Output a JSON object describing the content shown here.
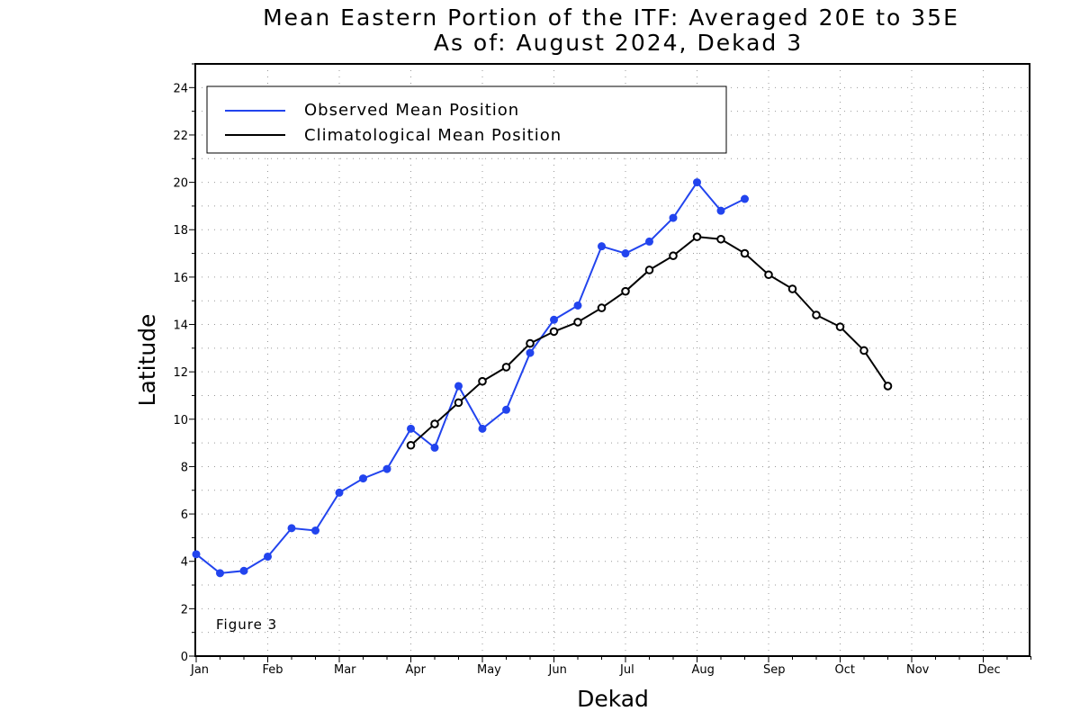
{
  "chart_data": {
    "type": "line",
    "title": "Mean Eastern Portion of the ITF: Averaged 20E to 35E",
    "subtitle": "As of: August 2024, Dekad 3",
    "xlabel": "Dekad",
    "ylabel": "Latitude",
    "ylim": [
      0,
      25
    ],
    "yticks": [
      0,
      2,
      4,
      6,
      8,
      10,
      12,
      14,
      16,
      18,
      20,
      22,
      24
    ],
    "xlim": [
      1,
      36
    ],
    "month_labels": [
      "Jan",
      "Feb",
      "Mar",
      "Apr",
      "May",
      "Jun",
      "Jul",
      "Aug",
      "Sep",
      "Oct",
      "Nov",
      "Dec"
    ],
    "grid": true,
    "legend_position": "top-left",
    "annotation": "Figure 3",
    "series": [
      {
        "name": "Observed Mean Position",
        "color": "#2244ee",
        "marker": "filled-circle",
        "x": [
          1,
          2,
          3,
          4,
          5,
          6,
          7,
          8,
          9,
          10,
          11,
          12,
          13,
          14,
          15,
          16,
          17,
          18,
          19,
          20,
          21,
          22,
          23,
          24
        ],
        "values": [
          4.3,
          3.5,
          3.6,
          4.2,
          5.4,
          5.3,
          6.9,
          7.5,
          7.9,
          9.6,
          8.8,
          11.4,
          9.6,
          10.4,
          12.8,
          14.2,
          14.8,
          17.3,
          17.0,
          17.5,
          18.5,
          20.0,
          18.8,
          19.3
        ]
      },
      {
        "name": "Climatological Mean Position",
        "color": "#000000",
        "marker": "open-circle",
        "x": [
          10,
          11,
          12,
          13,
          14,
          15,
          16,
          17,
          18,
          19,
          20,
          21,
          22,
          23,
          24,
          25,
          26,
          27,
          28,
          29,
          30
        ],
        "values": [
          8.9,
          9.8,
          10.7,
          11.6,
          12.2,
          13.2,
          13.7,
          14.1,
          14.7,
          15.4,
          16.3,
          16.9,
          17.7,
          17.6,
          17.0,
          16.1,
          15.5,
          14.4,
          13.9,
          12.9,
          11.4
        ]
      }
    ]
  }
}
